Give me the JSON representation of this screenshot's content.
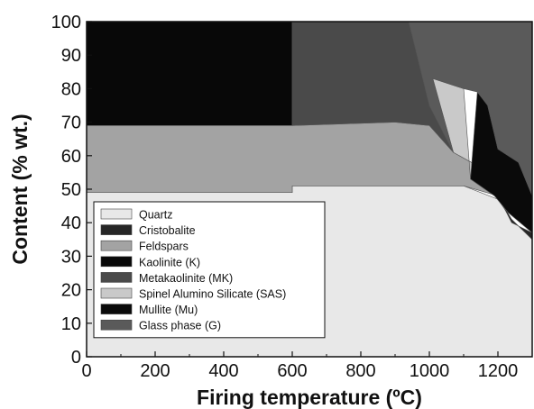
{
  "chart_data": {
    "type": "area",
    "xlabel": "Firing temperature (ºC)",
    "ylabel": "Content (% wt.)",
    "xlim": [
      0,
      1300
    ],
    "ylim": [
      0,
      100
    ],
    "xticks": [
      0,
      200,
      400,
      600,
      800,
      1000,
      1200
    ],
    "yticks": [
      0,
      10,
      20,
      30,
      40,
      50,
      60,
      70,
      80,
      90,
      100
    ],
    "legend_position": "bottom-left",
    "series": [
      {
        "name": "Quartz",
        "color": "#e8e8e8",
        "polygon": [
          [
            0,
            0
          ],
          [
            1300,
            0
          ],
          [
            1300,
            35
          ],
          [
            1240,
            41
          ],
          [
            1200,
            47
          ],
          [
            1100,
            51
          ],
          [
            1000,
            51
          ],
          [
            600,
            51
          ],
          [
            600,
            49
          ],
          [
            0,
            49
          ]
        ]
      },
      {
        "name": "Cristobalite",
        "color": "#262626",
        "polygon": [
          [
            1200,
            48
          ],
          [
            1240,
            41
          ],
          [
            1300,
            35
          ],
          [
            1300,
            37
          ],
          [
            1240,
            40
          ]
        ]
      },
      {
        "name": "Feldspars",
        "color": "#a3a3a3",
        "polygon": [
          [
            0,
            49
          ],
          [
            600,
            49
          ],
          [
            600,
            51
          ],
          [
            1000,
            51
          ],
          [
            1100,
            51
          ],
          [
            1200,
            48
          ],
          [
            1190,
            48
          ],
          [
            1140,
            57
          ],
          [
            1070,
            61
          ],
          [
            1000,
            69
          ],
          [
            900,
            70
          ],
          [
            600,
            69
          ],
          [
            0,
            69
          ]
        ]
      },
      {
        "name": "Kaolinite (K)",
        "color": "#080808",
        "polygon": [
          [
            0,
            69
          ],
          [
            600,
            69
          ],
          [
            600,
            100
          ],
          [
            0,
            100
          ]
        ]
      },
      {
        "name": "Metakaolinite (MK)",
        "color": "#4a4a4a",
        "polygon": [
          [
            600,
            69
          ],
          [
            900,
            70
          ],
          [
            1000,
            69
          ],
          [
            1070,
            61
          ],
          [
            1000,
            75
          ],
          [
            940,
            100
          ],
          [
            600,
            100
          ]
        ]
      },
      {
        "name": "Spinel Alumino Silicate (SAS)",
        "color": "#c9c9c9",
        "polygon": [
          [
            1070,
            61
          ],
          [
            1140,
            57
          ],
          [
            1190,
            48
          ],
          [
            1120,
            53
          ],
          [
            1100,
            80
          ],
          [
            1010,
            83
          ]
        ]
      },
      {
        "name": "Mullite (Mu)",
        "color": "#0a0a0a",
        "polygon": [
          [
            1120,
            53
          ],
          [
            1190,
            48
          ],
          [
            1230,
            43
          ],
          [
            1300,
            37
          ],
          [
            1300,
            48
          ],
          [
            1260,
            58
          ],
          [
            1200,
            62
          ],
          [
            1170,
            75
          ],
          [
            1140,
            79
          ]
        ]
      },
      {
        "name": "Glass phase (G)",
        "color": "#5a5a5a",
        "polygon": [
          [
            940,
            100
          ],
          [
            1000,
            75
          ],
          [
            1070,
            61
          ],
          [
            1010,
            83
          ],
          [
            1100,
            80
          ],
          [
            1140,
            79
          ],
          [
            1170,
            75
          ],
          [
            1200,
            62
          ],
          [
            1260,
            58
          ],
          [
            1300,
            48
          ],
          [
            1300,
            100
          ]
        ]
      }
    ]
  }
}
